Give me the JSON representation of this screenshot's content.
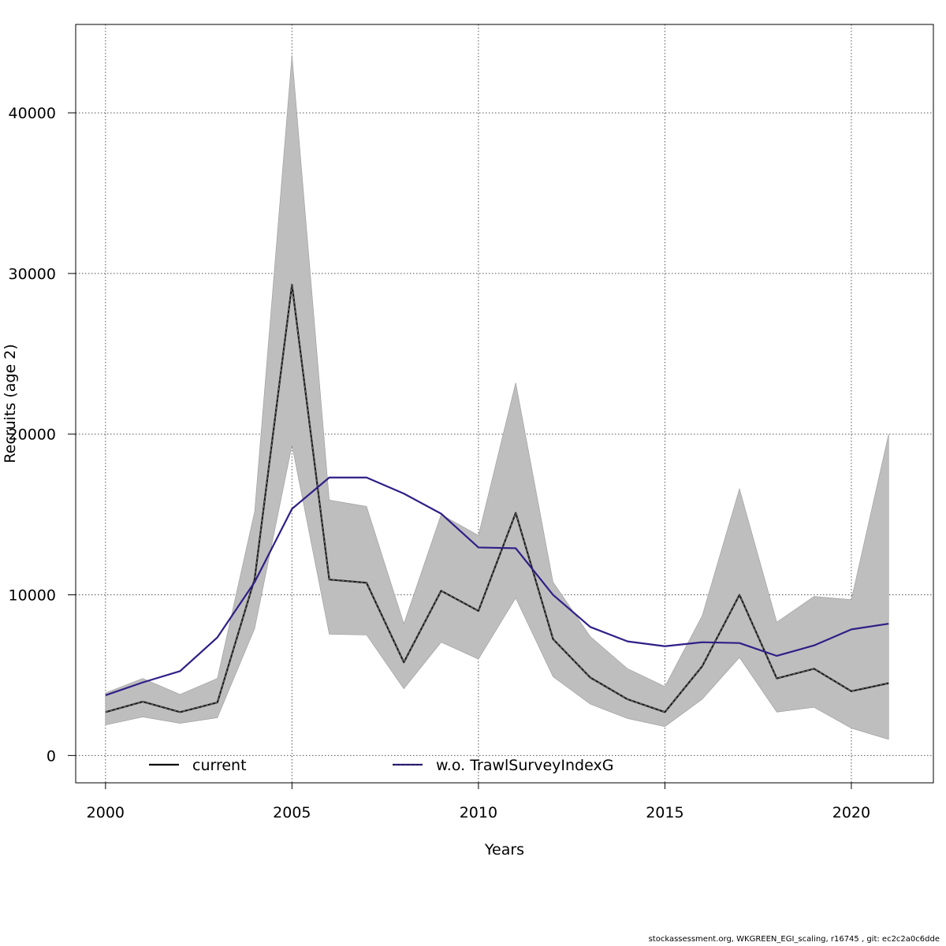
{
  "chart_data": {
    "type": "line",
    "xlabel": "Years",
    "ylabel": "Recruits (age 2)",
    "xlim": [
      1999.2,
      2022.2
    ],
    "ylim": [
      -1700,
      45500
    ],
    "x_ticks": [
      2000,
      2005,
      2010,
      2015,
      2020
    ],
    "y_ticks": [
      0,
      10000,
      20000,
      30000,
      40000
    ],
    "grid": true,
    "x": [
      2000,
      2001,
      2002,
      2003,
      2004,
      2005,
      2006,
      2007,
      2008,
      2009,
      2010,
      2011,
      2012,
      2013,
      2014,
      2015,
      2016,
      2017,
      2018,
      2019,
      2020,
      2021
    ],
    "confidence_band": {
      "name": "current 95% CI",
      "color": "#bebebe",
      "lower": [
        1900,
        2400,
        2000,
        2350,
        7900,
        19300,
        7550,
        7500,
        4150,
        7050,
        6000,
        9800,
        4900,
        3200,
        2300,
        1800,
        3500,
        6100,
        2700,
        3000,
        1700,
        1000
      ],
      "upper": [
        3900,
        4800,
        3800,
        4800,
        15200,
        43600,
        15900,
        15500,
        8200,
        15000,
        13700,
        23200,
        10800,
        7400,
        5400,
        4300,
        8700,
        16600,
        8300,
        9900,
        9700,
        20000
      ]
    },
    "series": [
      {
        "name": "current",
        "color": "#1a1a1a",
        "style": "dashed-over-solid",
        "values": [
          2700,
          3350,
          2700,
          3300,
          11000,
          29300,
          10950,
          10750,
          5800,
          10250,
          9000,
          15100,
          7250,
          4850,
          3500,
          2700,
          5550,
          10000,
          4800,
          5400,
          4000,
          4500
        ]
      },
      {
        "name": "w.o. TrawlSurveyIndexG",
        "color": "#2e1f87",
        "style": "solid",
        "values": [
          3750,
          4550,
          5250,
          7350,
          10800,
          15350,
          17300,
          17300,
          16300,
          15050,
          12950,
          12900,
          10000,
          8000,
          7100,
          6800,
          7050,
          7000,
          6200,
          6850,
          7850,
          8200
        ]
      }
    ],
    "legend": [
      {
        "label": "current",
        "color": "#000000"
      },
      {
        "label": "w.o. TrawlSurveyIndexG",
        "color": "#2e1f87"
      }
    ],
    "legend_position": "bottom"
  },
  "footer": {
    "text": "stockassessment.org, WKGREEN_EGI_scaling, r16745 , git: ec2c2a0c6dde"
  }
}
